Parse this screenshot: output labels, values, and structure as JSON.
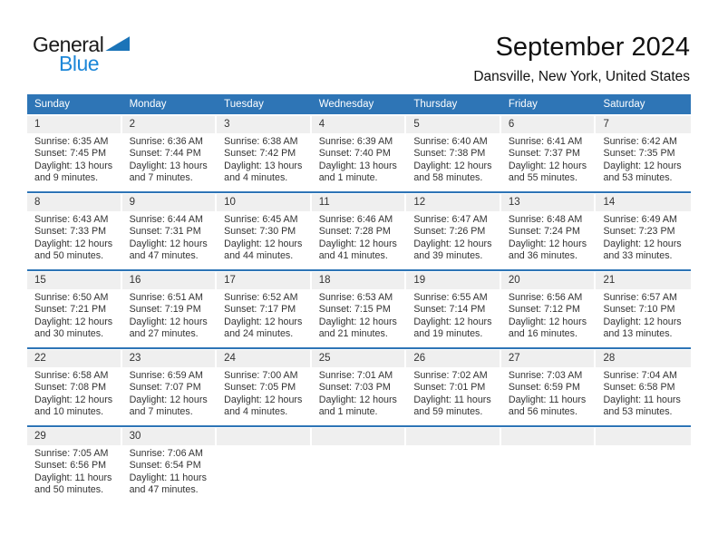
{
  "logo": {
    "line1": "General",
    "line2": "Blue"
  },
  "title": "September 2024",
  "location": "Dansville, New York, United States",
  "weekdays": [
    "Sunday",
    "Monday",
    "Tuesday",
    "Wednesday",
    "Thursday",
    "Friday",
    "Saturday"
  ],
  "colors": {
    "header_blue": "#2e75b6",
    "week_rule_blue": "#2e75b6",
    "number_band_gray": "#efefef",
    "logo_triangle_blue": "#1b74b8",
    "logo_text_blue": "#1d87d8",
    "body_text": "#333333"
  },
  "weeks": [
    [
      {
        "day": "1",
        "sunrise": "Sunrise: 6:35 AM",
        "sunset": "Sunset: 7:45 PM",
        "daylight1": "Daylight: 13 hours",
        "daylight2": "and 9 minutes."
      },
      {
        "day": "2",
        "sunrise": "Sunrise: 6:36 AM",
        "sunset": "Sunset: 7:44 PM",
        "daylight1": "Daylight: 13 hours",
        "daylight2": "and 7 minutes."
      },
      {
        "day": "3",
        "sunrise": "Sunrise: 6:38 AM",
        "sunset": "Sunset: 7:42 PM",
        "daylight1": "Daylight: 13 hours",
        "daylight2": "and 4 minutes."
      },
      {
        "day": "4",
        "sunrise": "Sunrise: 6:39 AM",
        "sunset": "Sunset: 7:40 PM",
        "daylight1": "Daylight: 13 hours",
        "daylight2": "and 1 minute."
      },
      {
        "day": "5",
        "sunrise": "Sunrise: 6:40 AM",
        "sunset": "Sunset: 7:38 PM",
        "daylight1": "Daylight: 12 hours",
        "daylight2": "and 58 minutes."
      },
      {
        "day": "6",
        "sunrise": "Sunrise: 6:41 AM",
        "sunset": "Sunset: 7:37 PM",
        "daylight1": "Daylight: 12 hours",
        "daylight2": "and 55 minutes."
      },
      {
        "day": "7",
        "sunrise": "Sunrise: 6:42 AM",
        "sunset": "Sunset: 7:35 PM",
        "daylight1": "Daylight: 12 hours",
        "daylight2": "and 53 minutes."
      }
    ],
    [
      {
        "day": "8",
        "sunrise": "Sunrise: 6:43 AM",
        "sunset": "Sunset: 7:33 PM",
        "daylight1": "Daylight: 12 hours",
        "daylight2": "and 50 minutes."
      },
      {
        "day": "9",
        "sunrise": "Sunrise: 6:44 AM",
        "sunset": "Sunset: 7:31 PM",
        "daylight1": "Daylight: 12 hours",
        "daylight2": "and 47 minutes."
      },
      {
        "day": "10",
        "sunrise": "Sunrise: 6:45 AM",
        "sunset": "Sunset: 7:30 PM",
        "daylight1": "Daylight: 12 hours",
        "daylight2": "and 44 minutes."
      },
      {
        "day": "11",
        "sunrise": "Sunrise: 6:46 AM",
        "sunset": "Sunset: 7:28 PM",
        "daylight1": "Daylight: 12 hours",
        "daylight2": "and 41 minutes."
      },
      {
        "day": "12",
        "sunrise": "Sunrise: 6:47 AM",
        "sunset": "Sunset: 7:26 PM",
        "daylight1": "Daylight: 12 hours",
        "daylight2": "and 39 minutes."
      },
      {
        "day": "13",
        "sunrise": "Sunrise: 6:48 AM",
        "sunset": "Sunset: 7:24 PM",
        "daylight1": "Daylight: 12 hours",
        "daylight2": "and 36 minutes."
      },
      {
        "day": "14",
        "sunrise": "Sunrise: 6:49 AM",
        "sunset": "Sunset: 7:23 PM",
        "daylight1": "Daylight: 12 hours",
        "daylight2": "and 33 minutes."
      }
    ],
    [
      {
        "day": "15",
        "sunrise": "Sunrise: 6:50 AM",
        "sunset": "Sunset: 7:21 PM",
        "daylight1": "Daylight: 12 hours",
        "daylight2": "and 30 minutes."
      },
      {
        "day": "16",
        "sunrise": "Sunrise: 6:51 AM",
        "sunset": "Sunset: 7:19 PM",
        "daylight1": "Daylight: 12 hours",
        "daylight2": "and 27 minutes."
      },
      {
        "day": "17",
        "sunrise": "Sunrise: 6:52 AM",
        "sunset": "Sunset: 7:17 PM",
        "daylight1": "Daylight: 12 hours",
        "daylight2": "and 24 minutes."
      },
      {
        "day": "18",
        "sunrise": "Sunrise: 6:53 AM",
        "sunset": "Sunset: 7:15 PM",
        "daylight1": "Daylight: 12 hours",
        "daylight2": "and 21 minutes."
      },
      {
        "day": "19",
        "sunrise": "Sunrise: 6:55 AM",
        "sunset": "Sunset: 7:14 PM",
        "daylight1": "Daylight: 12 hours",
        "daylight2": "and 19 minutes."
      },
      {
        "day": "20",
        "sunrise": "Sunrise: 6:56 AM",
        "sunset": "Sunset: 7:12 PM",
        "daylight1": "Daylight: 12 hours",
        "daylight2": "and 16 minutes."
      },
      {
        "day": "21",
        "sunrise": "Sunrise: 6:57 AM",
        "sunset": "Sunset: 7:10 PM",
        "daylight1": "Daylight: 12 hours",
        "daylight2": "and 13 minutes."
      }
    ],
    [
      {
        "day": "22",
        "sunrise": "Sunrise: 6:58 AM",
        "sunset": "Sunset: 7:08 PM",
        "daylight1": "Daylight: 12 hours",
        "daylight2": "and 10 minutes."
      },
      {
        "day": "23",
        "sunrise": "Sunrise: 6:59 AM",
        "sunset": "Sunset: 7:07 PM",
        "daylight1": "Daylight: 12 hours",
        "daylight2": "and 7 minutes."
      },
      {
        "day": "24",
        "sunrise": "Sunrise: 7:00 AM",
        "sunset": "Sunset: 7:05 PM",
        "daylight1": "Daylight: 12 hours",
        "daylight2": "and 4 minutes."
      },
      {
        "day": "25",
        "sunrise": "Sunrise: 7:01 AM",
        "sunset": "Sunset: 7:03 PM",
        "daylight1": "Daylight: 12 hours",
        "daylight2": "and 1 minute."
      },
      {
        "day": "26",
        "sunrise": "Sunrise: 7:02 AM",
        "sunset": "Sunset: 7:01 PM",
        "daylight1": "Daylight: 11 hours",
        "daylight2": "and 59 minutes."
      },
      {
        "day": "27",
        "sunrise": "Sunrise: 7:03 AM",
        "sunset": "Sunset: 6:59 PM",
        "daylight1": "Daylight: 11 hours",
        "daylight2": "and 56 minutes."
      },
      {
        "day": "28",
        "sunrise": "Sunrise: 7:04 AM",
        "sunset": "Sunset: 6:58 PM",
        "daylight1": "Daylight: 11 hours",
        "daylight2": "and 53 minutes."
      }
    ],
    [
      {
        "day": "29",
        "sunrise": "Sunrise: 7:05 AM",
        "sunset": "Sunset: 6:56 PM",
        "daylight1": "Daylight: 11 hours",
        "daylight2": "and 50 minutes."
      },
      {
        "day": "30",
        "sunrise": "Sunrise: 7:06 AM",
        "sunset": "Sunset: 6:54 PM",
        "daylight1": "Daylight: 11 hours",
        "daylight2": "and 47 minutes."
      },
      null,
      null,
      null,
      null,
      null
    ]
  ]
}
